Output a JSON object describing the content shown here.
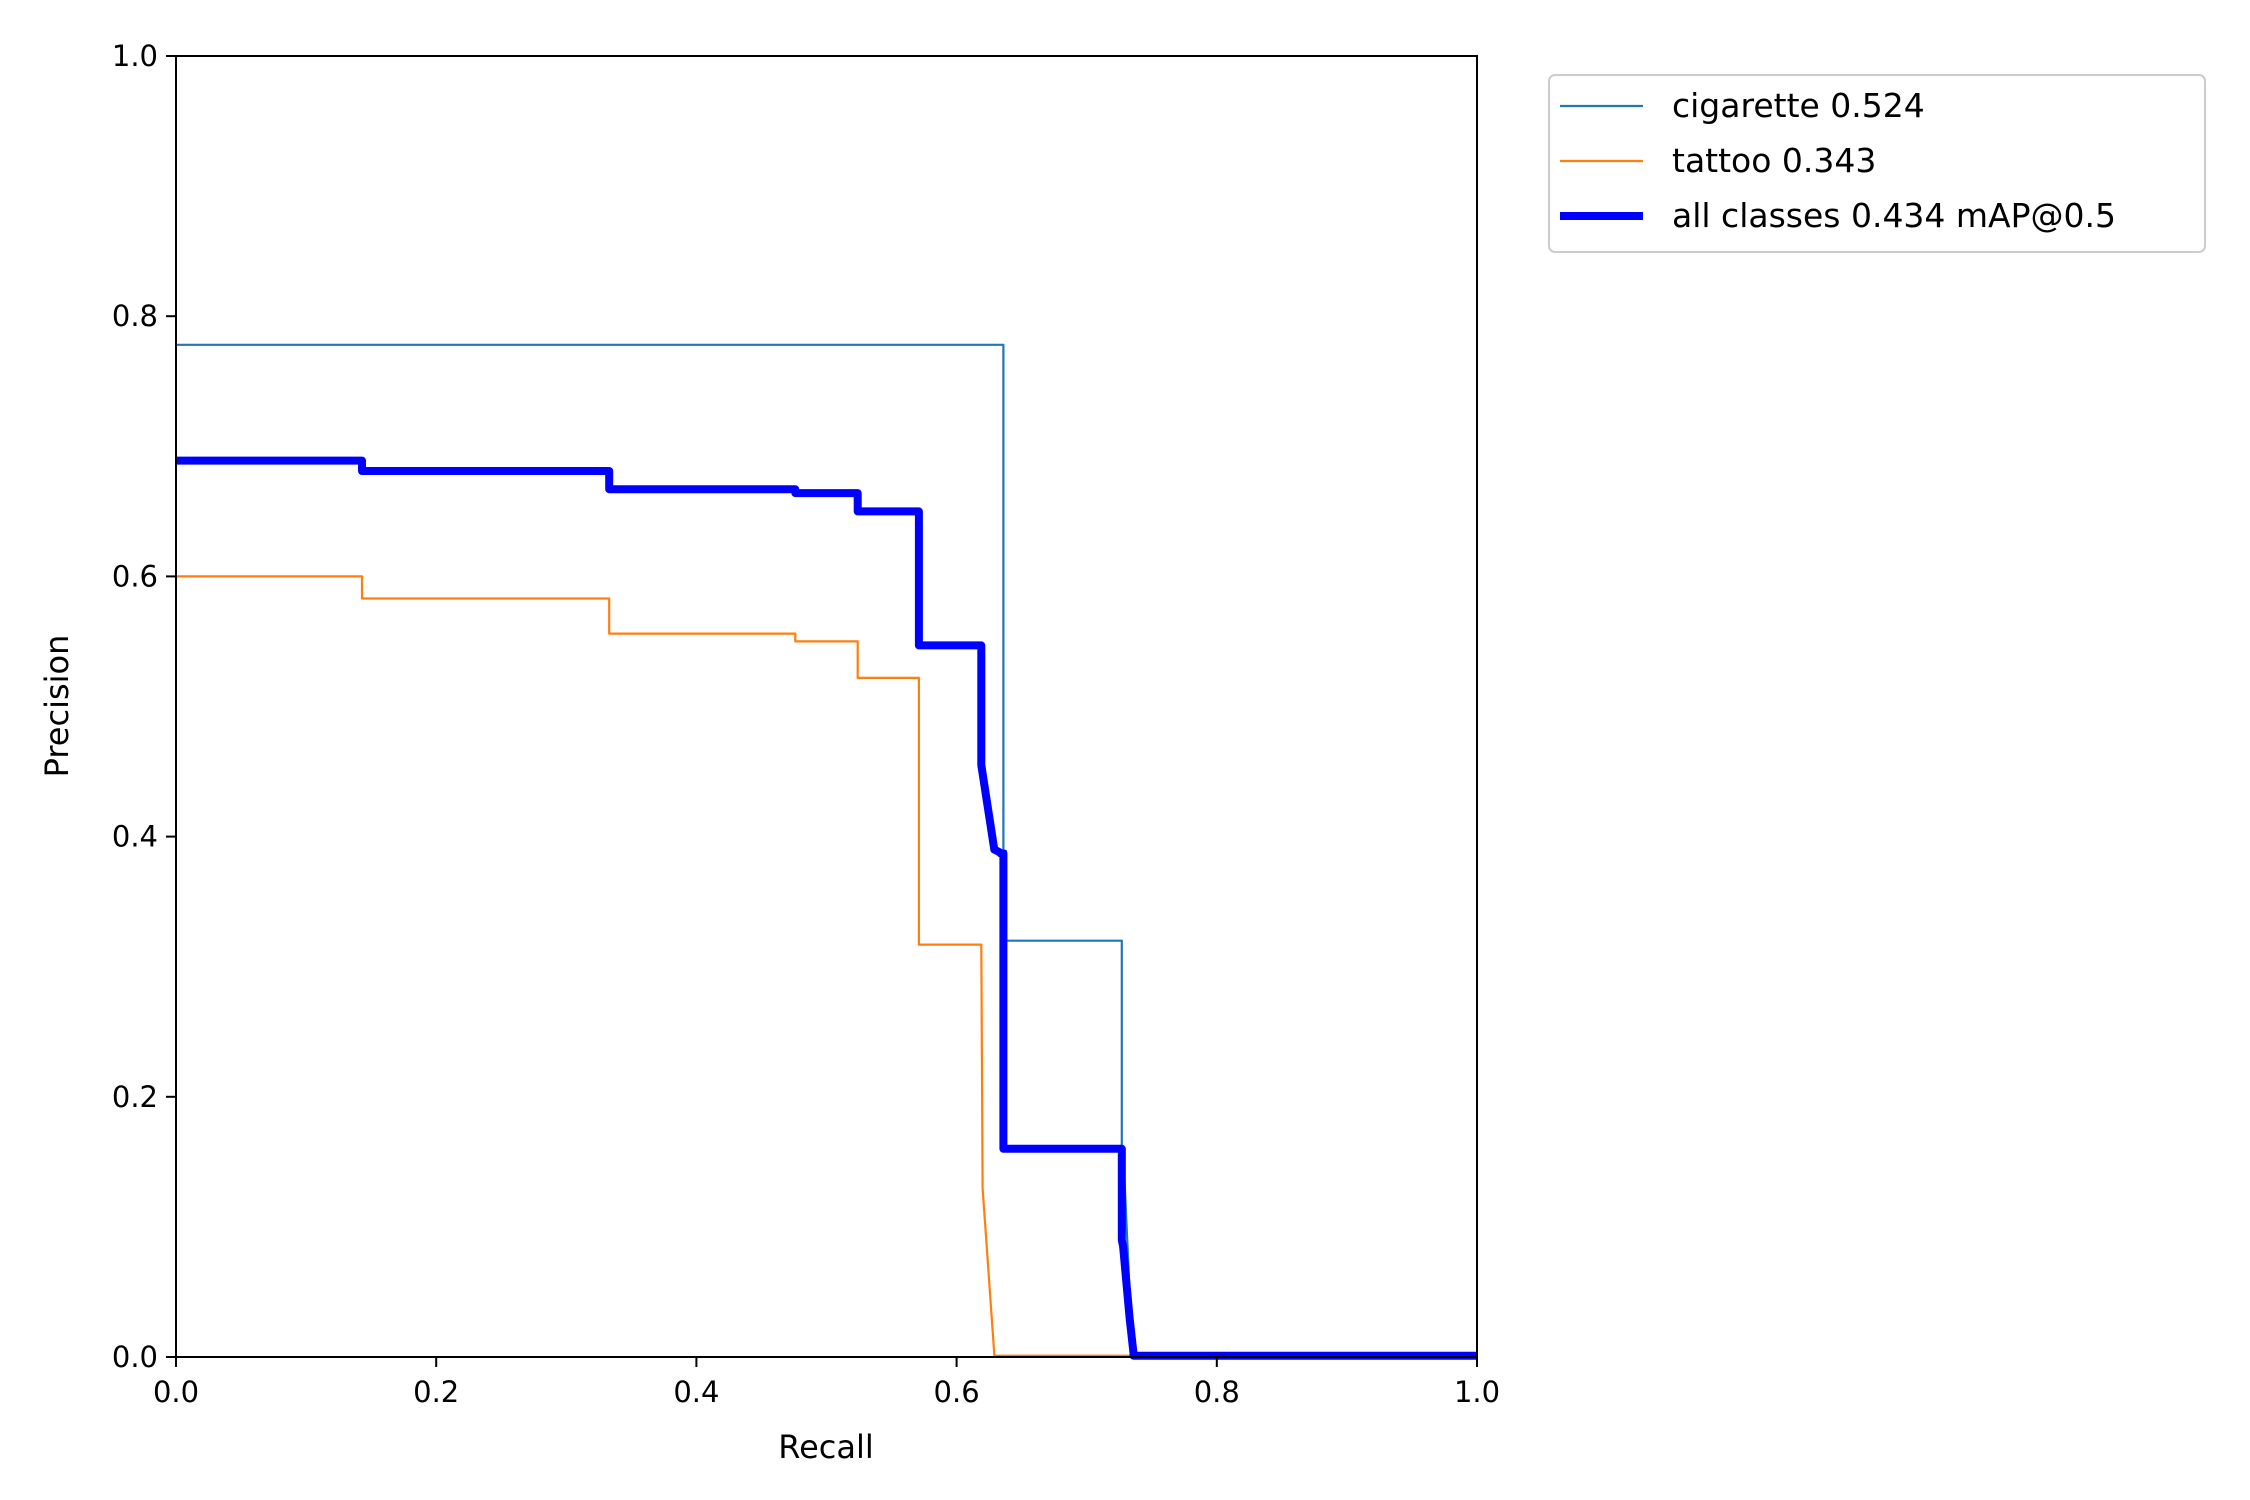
{
  "chart_data": {
    "type": "line",
    "xlabel": "Recall",
    "ylabel": "Precision",
    "xlim": [
      0,
      1
    ],
    "ylim": [
      0,
      1
    ],
    "xticks": [
      "0.0",
      "0.2",
      "0.4",
      "0.6",
      "0.8",
      "1.0"
    ],
    "yticks": [
      "0.0",
      "0.2",
      "0.4",
      "0.6",
      "0.8",
      "1.0"
    ],
    "grid": false,
    "legend_position": "outside-top-right",
    "series": [
      {
        "name": "cigarette 0.524",
        "color": "#1f77b4",
        "style": "thin",
        "x": [
          0.0,
          0.636,
          0.636,
          0.638,
          0.638,
          0.727,
          0.727,
          0.728,
          0.733,
          0.736,
          0.736,
          1.0
        ],
        "y": [
          0.778,
          0.778,
          0.389,
          0.389,
          0.32,
          0.32,
          0.16,
          0.16,
          0.05,
          0.003,
          0.001,
          0.001
        ]
      },
      {
        "name": "tattoo 0.343",
        "color": "#ff7f0e",
        "style": "thin",
        "x": [
          0.0,
          0.143,
          0.143,
          0.333,
          0.333,
          0.476,
          0.476,
          0.524,
          0.524,
          0.571,
          0.571,
          0.619,
          0.62,
          0.629,
          0.629,
          0.74
        ],
        "y": [
          0.6,
          0.6,
          0.583,
          0.583,
          0.556,
          0.556,
          0.55,
          0.55,
          0.522,
          0.522,
          0.317,
          0.317,
          0.13,
          0.002,
          0.001,
          0.001
        ]
      },
      {
        "name": "all classes 0.434 mAP@0.5",
        "color": "#0000ff",
        "style": "thick",
        "x": [
          0.0,
          0.143,
          0.143,
          0.333,
          0.333,
          0.476,
          0.476,
          0.524,
          0.524,
          0.571,
          0.571,
          0.619,
          0.619,
          0.629,
          0.633,
          0.634,
          0.636,
          0.636,
          0.638,
          0.638,
          0.727,
          0.727,
          0.728,
          0.733,
          0.736,
          0.736,
          1.0
        ],
        "y": [
          0.689,
          0.689,
          0.681,
          0.681,
          0.667,
          0.667,
          0.664,
          0.664,
          0.65,
          0.65,
          0.547,
          0.547,
          0.455,
          0.39,
          0.388,
          0.387,
          0.387,
          0.16,
          0.16,
          0.16,
          0.16,
          0.09,
          0.085,
          0.03,
          0.003,
          0.001,
          0.001
        ]
      }
    ]
  }
}
